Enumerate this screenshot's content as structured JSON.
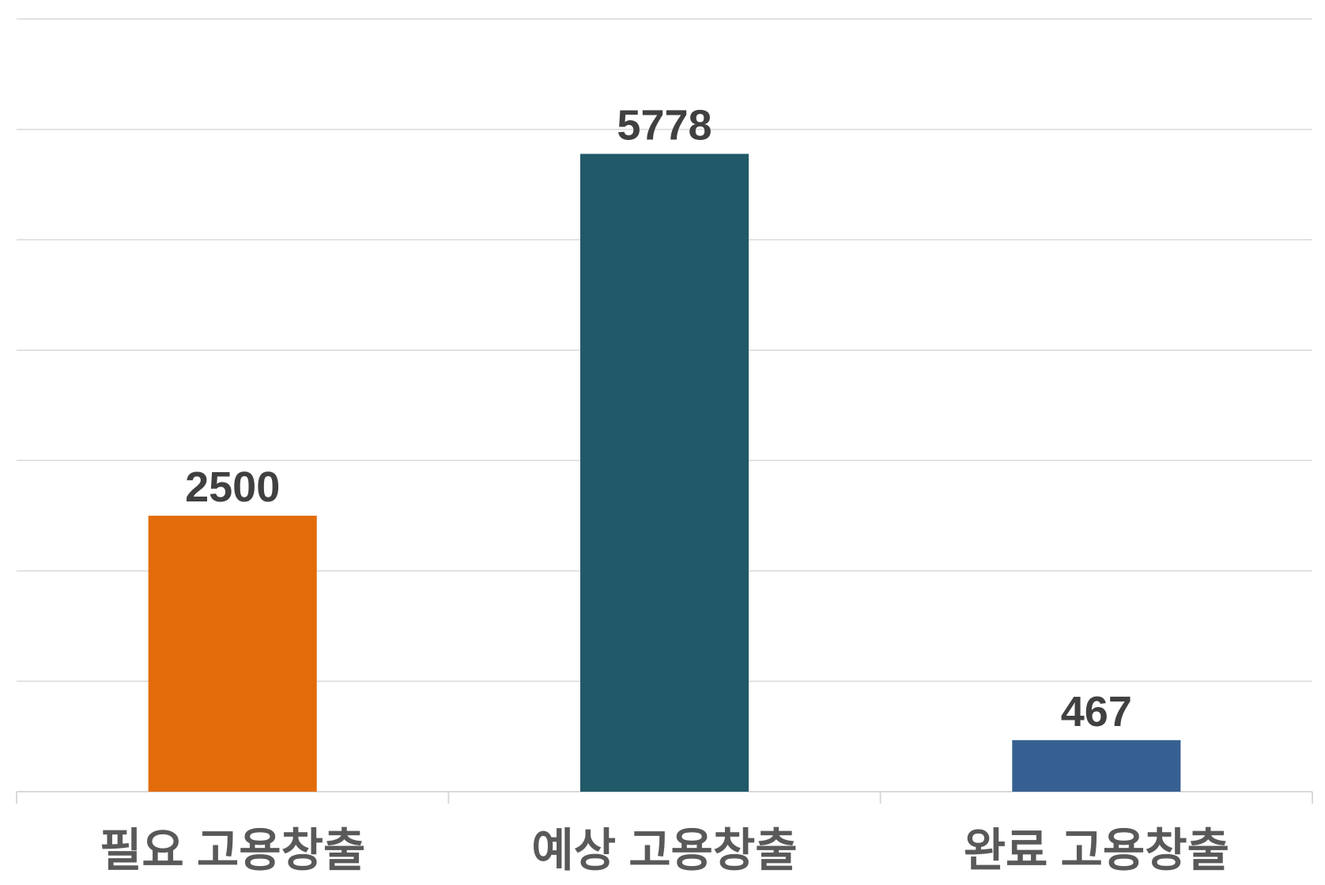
{
  "chart_data": {
    "type": "bar",
    "categories": [
      "필요 고용창출",
      "예상 고용창출",
      "완료 고용창출"
    ],
    "values": [
      2500,
      5778,
      467
    ],
    "colors": [
      "#e36c0a",
      "#215968",
      "#376092"
    ],
    "ylim": [
      0,
      7000
    ],
    "yticks": [
      0,
      1000,
      2000,
      3000,
      4000,
      5000,
      6000,
      7000
    ],
    "grid": true
  }
}
